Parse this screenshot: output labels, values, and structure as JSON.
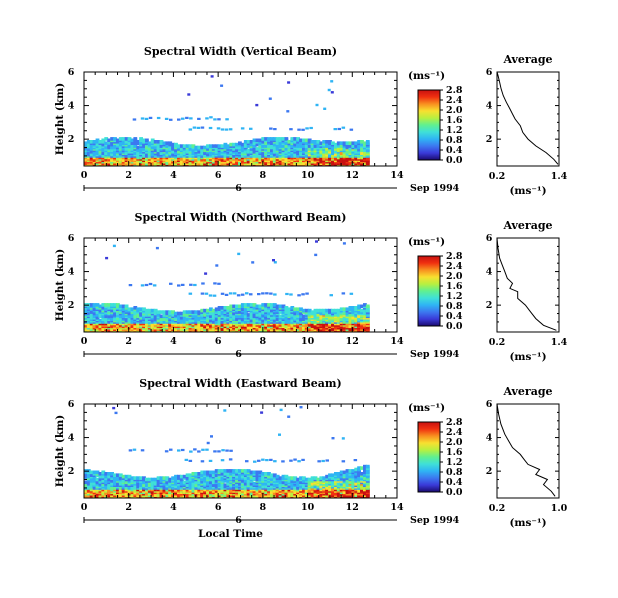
{
  "colorbar": {
    "stops": [
      "#1a0a6e",
      "#3a3ad8",
      "#3c78f0",
      "#2fb4f4",
      "#3fe0d8",
      "#60f090",
      "#b8f040",
      "#f8e030",
      "#f89020",
      "#f03010",
      "#c81010"
    ]
  },
  "main_x_ticks": [
    "0",
    "2",
    "4",
    "6",
    "8",
    "10",
    "12",
    "14"
  ],
  "date_day": "6",
  "date_label": "Sep 1994",
  "colorbar_unit": "(ms⁻¹)",
  "avg_xlabel": "(ms⁻¹)",
  "avg_title": "Average",
  "panels": [
    {
      "title": "Spectral Width (Vertical Beam)",
      "ylabel": "Height (km)",
      "y_ticks": [
        "2",
        "4",
        "6"
      ],
      "cbar_ticks": [
        "0.0",
        "0.4",
        "0.8",
        "1.2",
        "1.6",
        "2.0",
        "2.4",
        "2.8"
      ],
      "avg_x_ticks": [
        "0.2",
        "1.4"
      ],
      "avg_y_ticks": [
        "2",
        "4",
        "6"
      ],
      "show_xlabel": false
    },
    {
      "title": "Spectral Width (Northward Beam)",
      "ylabel": "Height (km)",
      "y_ticks": [
        "2",
        "4",
        "6"
      ],
      "cbar_ticks": [
        "0.0",
        "0.4",
        "0.8",
        "1.2",
        "1.6",
        "2.0",
        "2.4",
        "2.8"
      ],
      "avg_x_ticks": [
        "0.2",
        "1.4"
      ],
      "avg_y_ticks": [
        "2",
        "4",
        "6"
      ],
      "show_xlabel": false
    },
    {
      "title": "Spectral Width (Eastward Beam)",
      "ylabel": "Height (km)",
      "y_ticks": [
        "2",
        "4",
        "6"
      ],
      "cbar_ticks": [
        "0.0",
        "0.4",
        "0.8",
        "1.2",
        "1.6",
        "2.0",
        "2.4",
        "2.8"
      ],
      "avg_x_ticks": [
        "0.2",
        "1.0"
      ],
      "avg_y_ticks": [
        "2",
        "4",
        "6"
      ],
      "show_xlabel": true
    }
  ],
  "xlabel": "Local Time",
  "chart_data": [
    {
      "type": "heatmap",
      "title": "Spectral Width (Vertical Beam)",
      "xlabel": "Local Time",
      "ylabel": "Height (km)",
      "xlim": [
        0,
        14
      ],
      "ylim": [
        0.4,
        6
      ],
      "colorbar_label": "(ms⁻¹)",
      "colorbar_range": [
        0,
        2.8
      ],
      "data_extent_hours": [
        0,
        12.7
      ],
      "note_values": "main echo layer below ~2 km; sparse returns up to ~5.8 km"
    },
    {
      "type": "line",
      "title": "Average",
      "xlabel": "(ms⁻¹)",
      "xlim": [
        0.2,
        1.4
      ],
      "ylim": [
        0.4,
        6
      ],
      "series": [
        {
          "values_x": [
            1.38,
            1.3,
            1.15,
            0.95,
            0.8,
            0.7,
            0.65,
            0.55,
            0.5,
            0.45,
            0.38,
            0.32,
            0.28,
            0.25,
            0.22,
            0.2
          ],
          "values_y": [
            0.5,
            0.8,
            1.2,
            1.6,
            2.0,
            2.4,
            2.8,
            3.2,
            3.5,
            3.8,
            4.2,
            4.6,
            5.0,
            5.4,
            5.8,
            6.0
          ]
        }
      ]
    },
    {
      "type": "heatmap",
      "title": "Spectral Width (Northward Beam)",
      "xlabel": "Local Time",
      "ylabel": "Height (km)",
      "xlim": [
        0,
        14
      ],
      "ylim": [
        0.4,
        6
      ],
      "colorbar_label": "(ms⁻¹)",
      "colorbar_range": [
        0,
        2.8
      ],
      "data_extent_hours": [
        0,
        12.7
      ]
    },
    {
      "type": "line",
      "title": "Average",
      "xlabel": "(ms⁻¹)",
      "xlim": [
        0.2,
        1.4
      ],
      "ylim": [
        0.4,
        6
      ],
      "series": [
        {
          "values_x": [
            1.35,
            1.1,
            0.95,
            0.85,
            0.75,
            0.6,
            0.6,
            0.45,
            0.5,
            0.4,
            0.35,
            0.3,
            0.25,
            0.22,
            0.2
          ],
          "values_y": [
            0.5,
            0.8,
            1.2,
            1.6,
            2.0,
            2.4,
            2.8,
            3.0,
            3.3,
            3.6,
            4.0,
            4.4,
            4.8,
            5.4,
            6.0
          ]
        }
      ]
    },
    {
      "type": "heatmap",
      "title": "Spectral Width (Eastward Beam)",
      "xlabel": "Local Time",
      "ylabel": "Height (km)",
      "xlim": [
        0,
        14
      ],
      "ylim": [
        0.4,
        6
      ],
      "colorbar_label": "(ms⁻¹)",
      "colorbar_range": [
        0,
        2.8
      ],
      "data_extent_hours": [
        0,
        12.7
      ]
    },
    {
      "type": "line",
      "title": "Average",
      "xlabel": "(ms⁻¹)",
      "xlim": [
        0.2,
        1.0
      ],
      "ylim": [
        0.4,
        6
      ],
      "series": [
        {
          "values_x": [
            0.95,
            0.9,
            0.8,
            0.85,
            0.7,
            0.75,
            0.6,
            0.55,
            0.5,
            0.4,
            0.35,
            0.3,
            0.25,
            0.22,
            0.2
          ],
          "values_y": [
            0.5,
            0.8,
            1.2,
            1.5,
            1.8,
            2.1,
            2.4,
            2.7,
            3.0,
            3.4,
            3.8,
            4.2,
            4.8,
            5.4,
            6.0
          ]
        }
      ]
    }
  ]
}
